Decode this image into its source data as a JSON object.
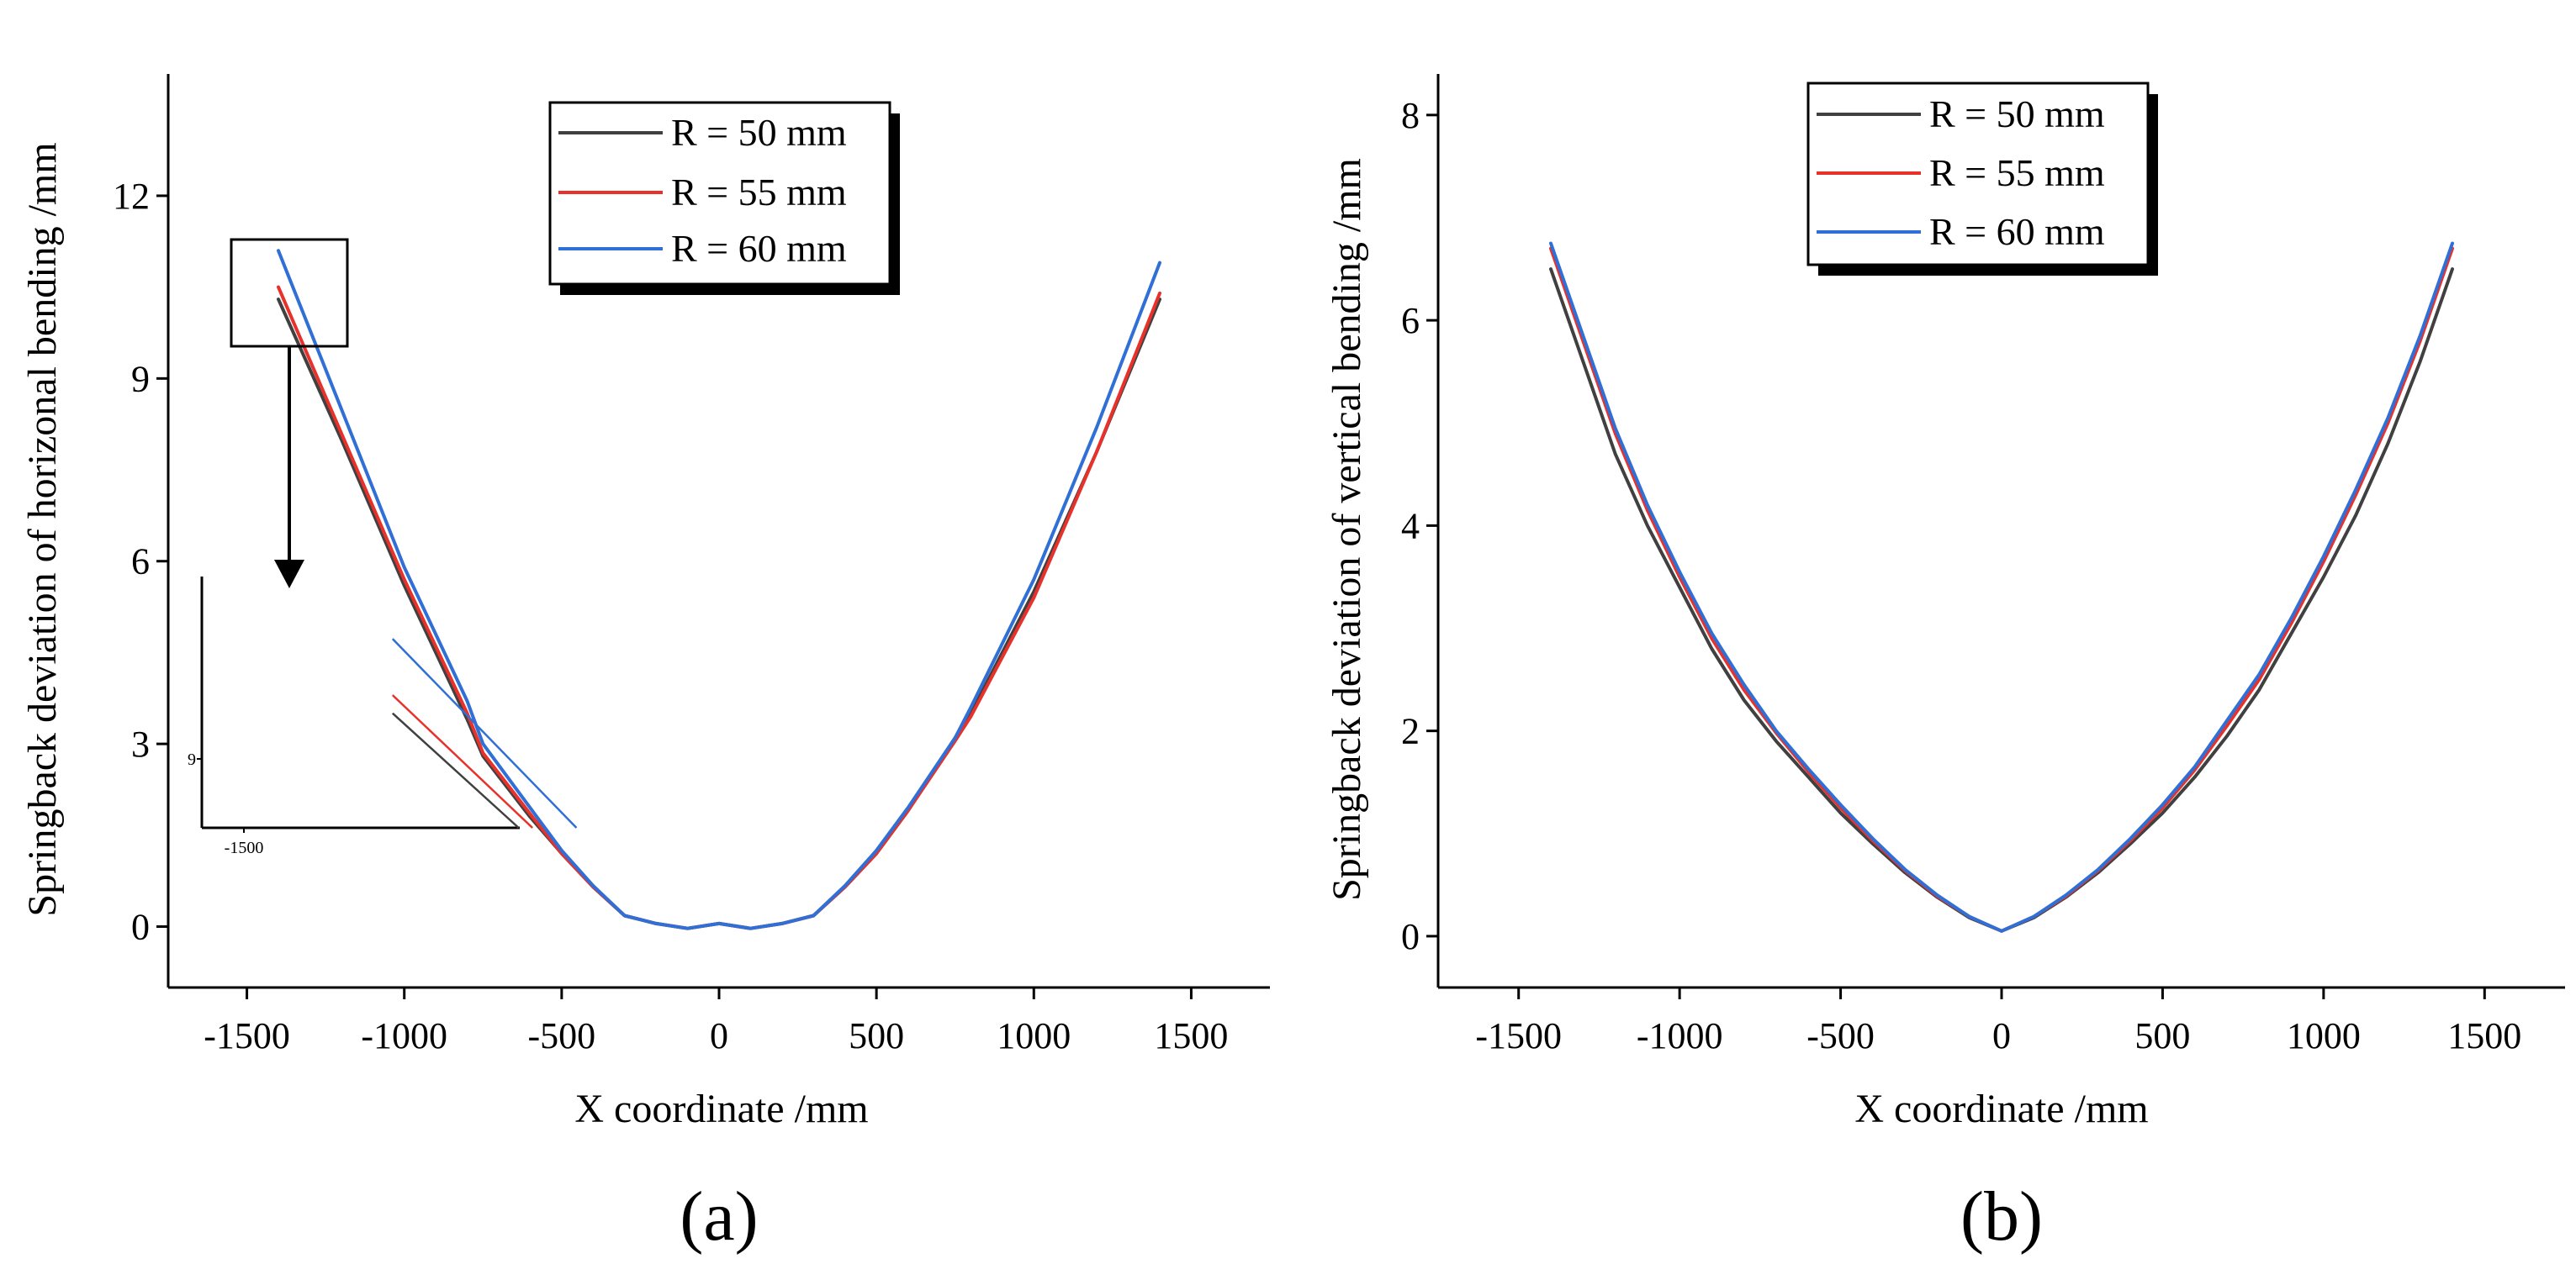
{
  "colors": {
    "black": "#404040",
    "red": "#e8312a",
    "blue": "#2f6fd6"
  },
  "chart_data": [
    {
      "type": "line",
      "panel_label": "(a)",
      "xlabel": "X coordinate  /mm",
      "ylabel": "Springback deviation of horizonal bending /mm",
      "xlim": [
        -1750,
        1750
      ],
      "ylim": [
        -1,
        14
      ],
      "xticks": [
        -1500,
        -1000,
        -500,
        0,
        500,
        1000,
        1500
      ],
      "yticks": [
        0,
        3,
        6,
        9,
        12
      ],
      "legend_position": "top-center",
      "series": [
        {
          "name": "R = 50 mm",
          "color": "#404040",
          "x": [
            -1400,
            -1200,
            -1000,
            -800,
            -750,
            -600,
            -500,
            -400,
            -300,
            -200,
            -100,
            0,
            100,
            200,
            300,
            400,
            500,
            600,
            750,
            800,
            1000,
            1200,
            1400
          ],
          "y": [
            10.3,
            8.0,
            5.6,
            3.4,
            2.8,
            1.8,
            1.2,
            0.65,
            0.18,
            0.05,
            -0.03,
            0.05,
            -0.03,
            0.05,
            0.18,
            0.65,
            1.2,
            1.9,
            3.1,
            3.5,
            5.5,
            7.8,
            10.3
          ]
        },
        {
          "name": "R = 55 mm",
          "color": "#e8312a",
          "x": [
            -1400,
            -1200,
            -1000,
            -800,
            -750,
            -600,
            -500,
            -400,
            -300,
            -200,
            -100,
            0,
            100,
            200,
            300,
            400,
            500,
            600,
            750,
            800,
            1000,
            1200,
            1400
          ],
          "y": [
            10.5,
            8.1,
            5.7,
            3.5,
            2.85,
            1.85,
            1.2,
            0.65,
            0.18,
            0.05,
            -0.03,
            0.05,
            -0.03,
            0.05,
            0.18,
            0.65,
            1.2,
            1.9,
            3.05,
            3.45,
            5.4,
            7.8,
            10.4
          ]
        },
        {
          "name": "R = 60 mm",
          "color": "#2f6fd6",
          "x": [
            -1400,
            -1200,
            -1000,
            -800,
            -750,
            -600,
            -500,
            -400,
            -300,
            -200,
            -100,
            0,
            100,
            200,
            300,
            400,
            500,
            600,
            750,
            800,
            1000,
            1200,
            1400
          ],
          "y": [
            11.1,
            8.5,
            5.9,
            3.7,
            3.0,
            1.95,
            1.25,
            0.67,
            0.18,
            0.05,
            -0.03,
            0.05,
            -0.03,
            0.05,
            0.18,
            0.67,
            1.25,
            1.95,
            3.1,
            3.6,
            5.7,
            8.2,
            10.9
          ]
        }
      ],
      "inset": {
        "ytick_label": "9",
        "xtick_label": "-1500",
        "zoom_x": [
          -1510,
          -1260
        ],
        "zoom_y": [
          8.7,
          11.2
        ]
      }
    },
    {
      "type": "line",
      "panel_label": "(b)",
      "xlabel": "X coordinate /mm",
      "ylabel": "Springback deviation of vertical bending /mm",
      "xlim": [
        -1750,
        1750
      ],
      "ylim": [
        -0.5,
        8.4
      ],
      "xticks": [
        -1500,
        -1000,
        -500,
        0,
        500,
        1000,
        1500
      ],
      "yticks": [
        0,
        2,
        4,
        6,
        8
      ],
      "legend_position": "top-center",
      "series": [
        {
          "name": "R = 50 mm",
          "color": "#404040",
          "x": [
            -1400,
            -1300,
            -1200,
            -1100,
            -1000,
            -900,
            -800,
            -700,
            -600,
            -500,
            -400,
            -300,
            -200,
            -100,
            0,
            100,
            200,
            300,
            400,
            500,
            600,
            700,
            800,
            900,
            1000,
            1100,
            1200,
            1300,
            1400
          ],
          "y": [
            6.5,
            5.6,
            4.7,
            4.0,
            3.4,
            2.8,
            2.3,
            1.9,
            1.55,
            1.2,
            0.9,
            0.62,
            0.38,
            0.18,
            0.05,
            0.18,
            0.38,
            0.62,
            0.9,
            1.2,
            1.55,
            1.95,
            2.4,
            2.95,
            3.5,
            4.1,
            4.8,
            5.6,
            6.5
          ]
        },
        {
          "name": "R = 55 mm",
          "color": "#e8312a",
          "x": [
            -1400,
            -1300,
            -1200,
            -1100,
            -1000,
            -900,
            -800,
            -700,
            -600,
            -500,
            -400,
            -300,
            -200,
            -100,
            0,
            100,
            200,
            300,
            400,
            500,
            600,
            700,
            800,
            900,
            1000,
            1100,
            1200,
            1300,
            1400
          ],
          "y": [
            6.7,
            5.8,
            4.9,
            4.15,
            3.5,
            2.9,
            2.4,
            1.98,
            1.6,
            1.25,
            0.93,
            0.64,
            0.39,
            0.19,
            0.05,
            0.19,
            0.39,
            0.64,
            0.93,
            1.25,
            1.62,
            2.05,
            2.5,
            3.05,
            3.65,
            4.3,
            5.0,
            5.8,
            6.7
          ]
        },
        {
          "name": "R = 60 mm",
          "color": "#2f6fd6",
          "x": [
            -1400,
            -1300,
            -1200,
            -1100,
            -1000,
            -900,
            -800,
            -700,
            -600,
            -500,
            -400,
            -300,
            -200,
            -100,
            0,
            100,
            200,
            300,
            400,
            500,
            600,
            700,
            800,
            900,
            1000,
            1100,
            1200,
            1300,
            1400
          ],
          "y": [
            6.75,
            5.85,
            4.95,
            4.2,
            3.55,
            2.95,
            2.45,
            2.0,
            1.63,
            1.28,
            0.95,
            0.65,
            0.4,
            0.19,
            0.05,
            0.19,
            0.4,
            0.65,
            0.95,
            1.28,
            1.65,
            2.1,
            2.55,
            3.1,
            3.7,
            4.35,
            5.05,
            5.85,
            6.75
          ]
        }
      ]
    }
  ]
}
